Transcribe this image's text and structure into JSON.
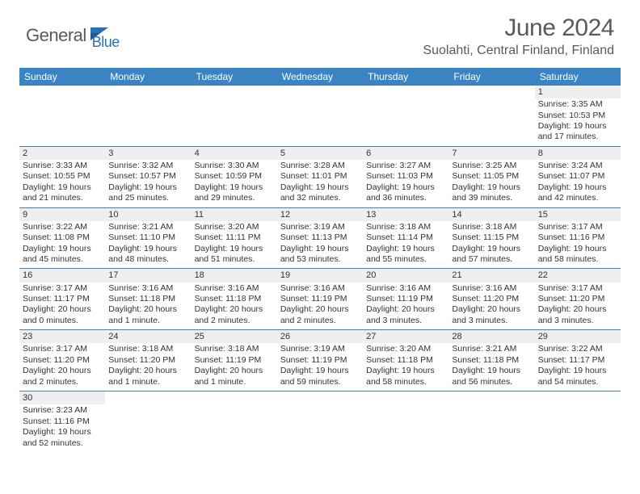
{
  "logo": {
    "general": "General",
    "blue": "Blue"
  },
  "title": "June 2024",
  "location": "Suolahti, Central Finland, Finland",
  "colors": {
    "accent": "#3b84c4",
    "text": "#5a5a5a",
    "body": "#333333",
    "row_shade": "#efefef"
  },
  "weekdays": [
    "Sunday",
    "Monday",
    "Tuesday",
    "Wednesday",
    "Thursday",
    "Friday",
    "Saturday"
  ],
  "weeks": [
    [
      null,
      null,
      null,
      null,
      null,
      null,
      {
        "n": "1",
        "sr": "Sunrise: 3:35 AM",
        "ss": "Sunset: 10:53 PM",
        "dl": "Daylight: 19 hours and 17 minutes."
      }
    ],
    [
      {
        "n": "2",
        "sr": "Sunrise: 3:33 AM",
        "ss": "Sunset: 10:55 PM",
        "dl": "Daylight: 19 hours and 21 minutes."
      },
      {
        "n": "3",
        "sr": "Sunrise: 3:32 AM",
        "ss": "Sunset: 10:57 PM",
        "dl": "Daylight: 19 hours and 25 minutes."
      },
      {
        "n": "4",
        "sr": "Sunrise: 3:30 AM",
        "ss": "Sunset: 10:59 PM",
        "dl": "Daylight: 19 hours and 29 minutes."
      },
      {
        "n": "5",
        "sr": "Sunrise: 3:28 AM",
        "ss": "Sunset: 11:01 PM",
        "dl": "Daylight: 19 hours and 32 minutes."
      },
      {
        "n": "6",
        "sr": "Sunrise: 3:27 AM",
        "ss": "Sunset: 11:03 PM",
        "dl": "Daylight: 19 hours and 36 minutes."
      },
      {
        "n": "7",
        "sr": "Sunrise: 3:25 AM",
        "ss": "Sunset: 11:05 PM",
        "dl": "Daylight: 19 hours and 39 minutes."
      },
      {
        "n": "8",
        "sr": "Sunrise: 3:24 AM",
        "ss": "Sunset: 11:07 PM",
        "dl": "Daylight: 19 hours and 42 minutes."
      }
    ],
    [
      {
        "n": "9",
        "sr": "Sunrise: 3:22 AM",
        "ss": "Sunset: 11:08 PM",
        "dl": "Daylight: 19 hours and 45 minutes."
      },
      {
        "n": "10",
        "sr": "Sunrise: 3:21 AM",
        "ss": "Sunset: 11:10 PM",
        "dl": "Daylight: 19 hours and 48 minutes."
      },
      {
        "n": "11",
        "sr": "Sunrise: 3:20 AM",
        "ss": "Sunset: 11:11 PM",
        "dl": "Daylight: 19 hours and 51 minutes."
      },
      {
        "n": "12",
        "sr": "Sunrise: 3:19 AM",
        "ss": "Sunset: 11:13 PM",
        "dl": "Daylight: 19 hours and 53 minutes."
      },
      {
        "n": "13",
        "sr": "Sunrise: 3:18 AM",
        "ss": "Sunset: 11:14 PM",
        "dl": "Daylight: 19 hours and 55 minutes."
      },
      {
        "n": "14",
        "sr": "Sunrise: 3:18 AM",
        "ss": "Sunset: 11:15 PM",
        "dl": "Daylight: 19 hours and 57 minutes."
      },
      {
        "n": "15",
        "sr": "Sunrise: 3:17 AM",
        "ss": "Sunset: 11:16 PM",
        "dl": "Daylight: 19 hours and 58 minutes."
      }
    ],
    [
      {
        "n": "16",
        "sr": "Sunrise: 3:17 AM",
        "ss": "Sunset: 11:17 PM",
        "dl": "Daylight: 20 hours and 0 minutes."
      },
      {
        "n": "17",
        "sr": "Sunrise: 3:16 AM",
        "ss": "Sunset: 11:18 PM",
        "dl": "Daylight: 20 hours and 1 minute."
      },
      {
        "n": "18",
        "sr": "Sunrise: 3:16 AM",
        "ss": "Sunset: 11:18 PM",
        "dl": "Daylight: 20 hours and 2 minutes."
      },
      {
        "n": "19",
        "sr": "Sunrise: 3:16 AM",
        "ss": "Sunset: 11:19 PM",
        "dl": "Daylight: 20 hours and 2 minutes."
      },
      {
        "n": "20",
        "sr": "Sunrise: 3:16 AM",
        "ss": "Sunset: 11:19 PM",
        "dl": "Daylight: 20 hours and 3 minutes."
      },
      {
        "n": "21",
        "sr": "Sunrise: 3:16 AM",
        "ss": "Sunset: 11:20 PM",
        "dl": "Daylight: 20 hours and 3 minutes."
      },
      {
        "n": "22",
        "sr": "Sunrise: 3:17 AM",
        "ss": "Sunset: 11:20 PM",
        "dl": "Daylight: 20 hours and 3 minutes."
      }
    ],
    [
      {
        "n": "23",
        "sr": "Sunrise: 3:17 AM",
        "ss": "Sunset: 11:20 PM",
        "dl": "Daylight: 20 hours and 2 minutes."
      },
      {
        "n": "24",
        "sr": "Sunrise: 3:18 AM",
        "ss": "Sunset: 11:20 PM",
        "dl": "Daylight: 20 hours and 1 minute."
      },
      {
        "n": "25",
        "sr": "Sunrise: 3:18 AM",
        "ss": "Sunset: 11:19 PM",
        "dl": "Daylight: 20 hours and 1 minute."
      },
      {
        "n": "26",
        "sr": "Sunrise: 3:19 AM",
        "ss": "Sunset: 11:19 PM",
        "dl": "Daylight: 19 hours and 59 minutes."
      },
      {
        "n": "27",
        "sr": "Sunrise: 3:20 AM",
        "ss": "Sunset: 11:18 PM",
        "dl": "Daylight: 19 hours and 58 minutes."
      },
      {
        "n": "28",
        "sr": "Sunrise: 3:21 AM",
        "ss": "Sunset: 11:18 PM",
        "dl": "Daylight: 19 hours and 56 minutes."
      },
      {
        "n": "29",
        "sr": "Sunrise: 3:22 AM",
        "ss": "Sunset: 11:17 PM",
        "dl": "Daylight: 19 hours and 54 minutes."
      }
    ],
    [
      {
        "n": "30",
        "sr": "Sunrise: 3:23 AM",
        "ss": "Sunset: 11:16 PM",
        "dl": "Daylight: 19 hours and 52 minutes."
      },
      null,
      null,
      null,
      null,
      null,
      null
    ]
  ]
}
